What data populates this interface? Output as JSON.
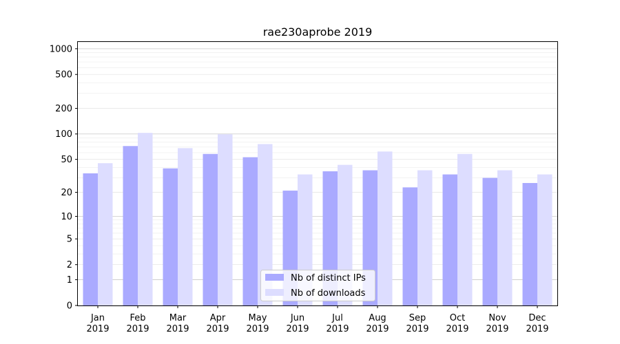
{
  "chart_data": {
    "type": "bar",
    "title": "rae230aprobe 2019",
    "xlabel": "",
    "ylabel": "",
    "y_scale": "symlog",
    "ylim": [
      0,
      1200
    ],
    "grid": true,
    "legend_position": "lower-center",
    "y_ticks": [
      0,
      1,
      2,
      5,
      10,
      20,
      50,
      100,
      200,
      500,
      1000
    ],
    "categories": [
      "Jan\n2019",
      "Feb\n2019",
      "Mar\n2019",
      "Apr\n2019",
      "May\n2019",
      "Jun\n2019",
      "Jul\n2019",
      "Aug\n2019",
      "Sep\n2019",
      "Oct\n2019",
      "Nov\n2019",
      "Dec\n2019"
    ],
    "series": [
      {
        "name": "Nb of distinct IPs",
        "color": "#aaaaff",
        "values": [
          34,
          72,
          39,
          58,
          53,
          21,
          36,
          37,
          23,
          33,
          30,
          26
        ]
      },
      {
        "name": "Nb of downloads",
        "color": "#ddddff",
        "values": [
          45,
          103,
          68,
          99,
          76,
          33,
          43,
          62,
          37,
          58,
          37,
          33
        ]
      }
    ]
  }
}
